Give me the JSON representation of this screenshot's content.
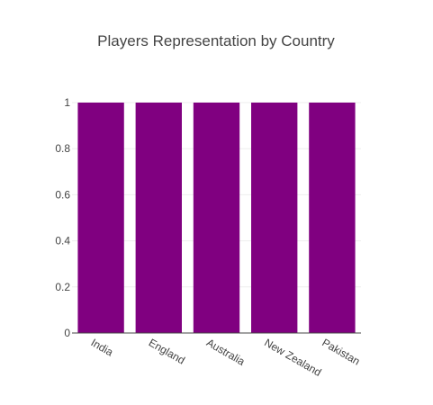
{
  "chart_data": {
    "type": "bar",
    "title": "Players Representation by Country",
    "categories": [
      "India",
      "England",
      "Australia",
      "New Zealand",
      "Pakistan"
    ],
    "values": [
      1,
      1,
      1,
      1,
      1
    ],
    "ylim": [
      0,
      1
    ],
    "y_ticks": [
      "0",
      "0.2",
      "0.4",
      "0.6",
      "0.8",
      "1"
    ],
    "bar_color": "#800080",
    "grid": true,
    "legend": "none"
  }
}
